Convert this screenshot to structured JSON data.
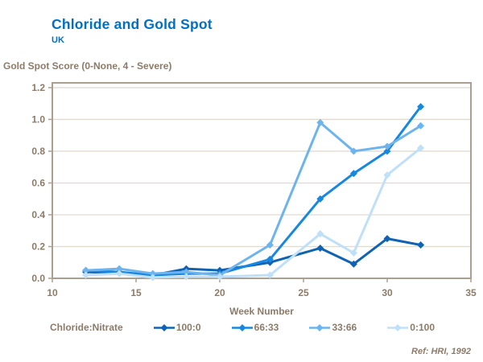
{
  "title": "Chloride and Gold Spot",
  "subtitle": "UK",
  "footer": "Ref: HRI, 1992",
  "colors": {
    "title_blue": "#0070C4",
    "axis_text": "#8C7B69",
    "frame": "#AB9F90",
    "grid": "#E0DAD1"
  },
  "chart_data": {
    "type": "line",
    "title": "Chloride and Gold Spot",
    "subtitle": "UK",
    "ylabel": "Gold Spot Score (0-None, 4 - Severe)",
    "xlabel": "Week Number",
    "legend_label": "Chloride:Nitrate",
    "legend_position": "bottom",
    "grid": "horizontal",
    "xlim": [
      10,
      35
    ],
    "ylim": [
      0,
      1.23
    ],
    "xticks": [
      10,
      15,
      20,
      25,
      30,
      35
    ],
    "yticks": [
      0.0,
      0.2,
      0.4,
      0.6,
      0.8,
      1.0,
      1.2
    ],
    "x": [
      12,
      14,
      16,
      18,
      20,
      23,
      26,
      28,
      30,
      32
    ],
    "series": [
      {
        "name": "100:0",
        "color": "#1063B2",
        "values": [
          0.04,
          0.035,
          0.02,
          0.06,
          0.05,
          0.1,
          0.19,
          0.09,
          0.25,
          0.21
        ]
      },
      {
        "name": "66:33",
        "color": "#1787E0",
        "values": [
          0.05,
          0.04,
          0.02,
          0.03,
          0.03,
          0.12,
          0.5,
          0.66,
          0.8,
          1.08
        ]
      },
      {
        "name": "33:66",
        "color": "#6DB4EF",
        "values": [
          0.05,
          0.06,
          0.03,
          0.04,
          0.02,
          0.21,
          0.98,
          0.8,
          0.83,
          0.96
        ]
      },
      {
        "name": "0:100",
        "color": "#BFE0F8",
        "values": [
          0.02,
          0.03,
          0.005,
          0.01,
          0.01,
          0.02,
          0.28,
          0.16,
          0.65,
          0.82
        ]
      }
    ]
  }
}
